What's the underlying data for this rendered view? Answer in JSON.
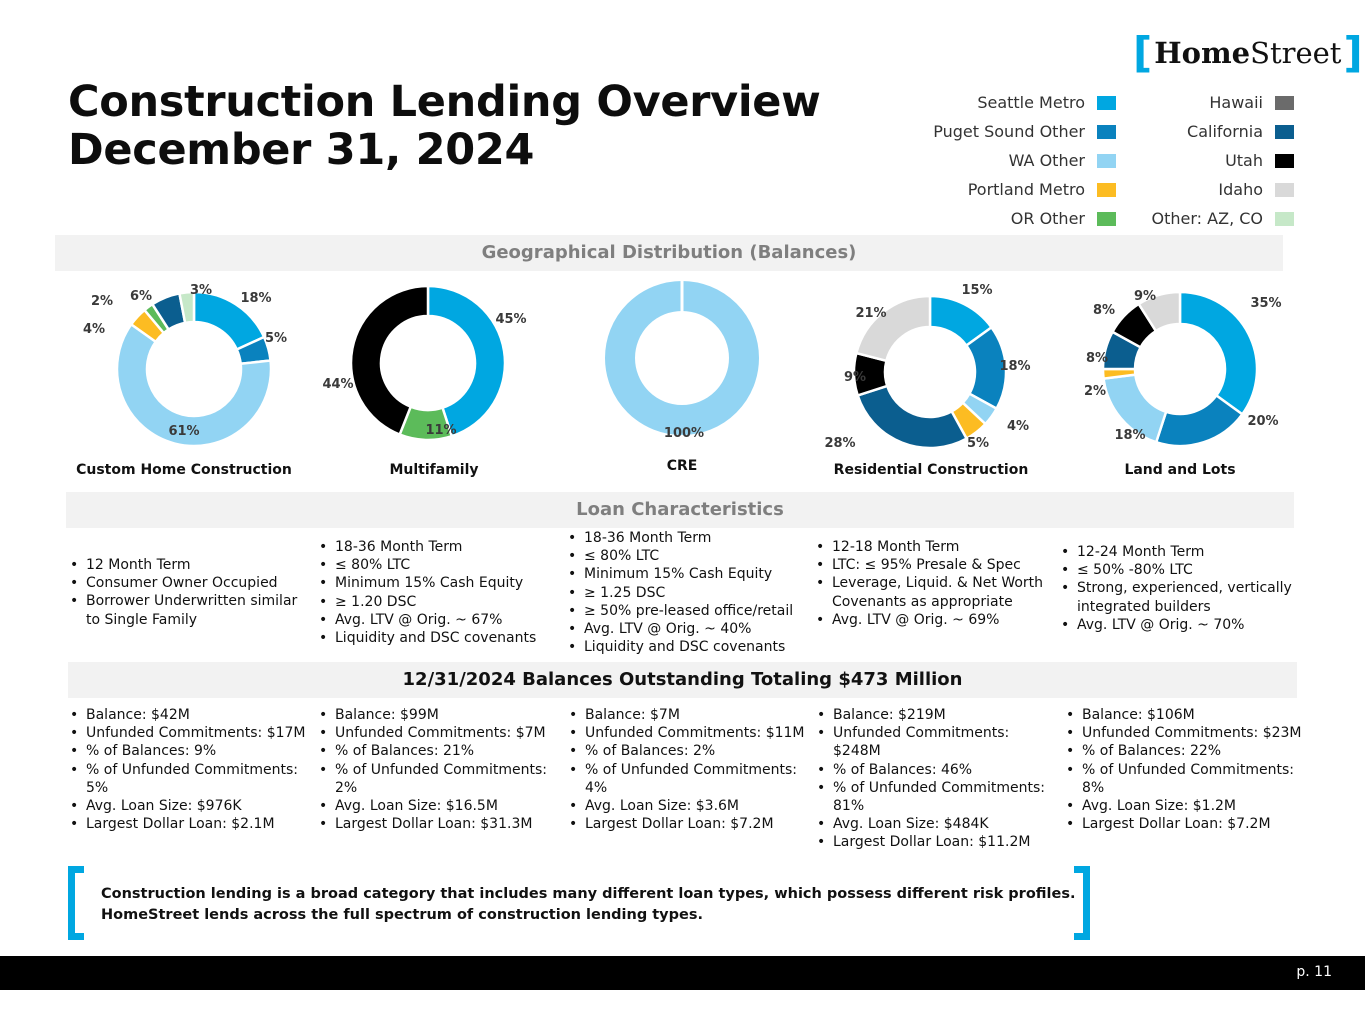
{
  "brand": {
    "bracket_open": "[",
    "home": "Home",
    "street": "Street",
    "bracket_close": "]",
    "accent_color": "#00a7e1"
  },
  "title": {
    "line1": "Construction Lending Overview",
    "line2": "December 31, 2024"
  },
  "legend": [
    {
      "label": "Seattle Metro",
      "color": "#00a7e1"
    },
    {
      "label": "Puget Sound Other",
      "color": "#0a82be"
    },
    {
      "label": "WA Other",
      "color": "#92d4f3"
    },
    {
      "label": "Portland Metro",
      "color": "#fcbc22"
    },
    {
      "label": "OR Other",
      "color": "#5cbb5a"
    },
    {
      "label": "Hawaii",
      "color": "#6b6b6b"
    },
    {
      "label": "California",
      "color": "#0b5e8f"
    },
    {
      "label": "Utah",
      "color": "#000000"
    },
    {
      "label": "Idaho",
      "color": "#d9d9d9"
    },
    {
      "label": "Other: AZ, CO",
      "color": "#c6e8c8"
    }
  ],
  "sections": {
    "geo": "Geographical Distribution (Balances)",
    "loan": "Loan Characteristics",
    "balances": "12/31/2024 Balances Outstanding Totaling $473 Million"
  },
  "chart_data": [
    {
      "type": "pie",
      "variant": "donut",
      "title": "Custom Home Construction",
      "categories": [
        "Seattle Metro",
        "Puget Sound Other",
        "WA Other",
        "Portland Metro",
        "OR Other",
        "California",
        "Other: AZ, CO"
      ],
      "values": [
        18,
        5,
        61,
        4,
        2,
        6,
        3
      ],
      "labels": [
        "18%",
        "5%",
        "61%",
        "4%",
        "2%",
        "6%",
        "3%"
      ],
      "colors": [
        "#00a7e1",
        "#0a82be",
        "#92d4f3",
        "#fcbc22",
        "#5cbb5a",
        "#0b5e8f",
        "#c6e8c8"
      ]
    },
    {
      "type": "pie",
      "variant": "donut",
      "title": "Multifamily",
      "categories": [
        "Seattle Metro",
        "OR Other",
        "Utah"
      ],
      "values": [
        45,
        11,
        44
      ],
      "labels": [
        "45%",
        "11%",
        "44%"
      ],
      "colors": [
        "#00a7e1",
        "#5cbb5a",
        "#000000"
      ]
    },
    {
      "type": "pie",
      "variant": "donut",
      "title": "CRE",
      "categories": [
        "WA Other"
      ],
      "values": [
        100
      ],
      "labels": [
        "100%"
      ],
      "colors": [
        "#92d4f3"
      ]
    },
    {
      "type": "pie",
      "variant": "donut",
      "title": "Residential Construction",
      "categories": [
        "Seattle Metro",
        "Puget Sound Other",
        "WA Other",
        "Portland Metro",
        "California",
        "Utah",
        "Idaho"
      ],
      "values": [
        15,
        18,
        4,
        5,
        28,
        9,
        21
      ],
      "labels": [
        "15%",
        "18%",
        "4%",
        "5%",
        "28%",
        "9%",
        "21%"
      ],
      "colors": [
        "#00a7e1",
        "#0a82be",
        "#92d4f3",
        "#fcbc22",
        "#0b5e8f",
        "#000000",
        "#d9d9d9"
      ]
    },
    {
      "type": "pie",
      "variant": "donut",
      "title": "Land and Lots",
      "categories": [
        "Seattle Metro",
        "Puget Sound Other",
        "WA Other",
        "Portland Metro",
        "California",
        "Utah",
        "Idaho"
      ],
      "values": [
        35,
        20,
        18,
        2,
        8,
        8,
        9
      ],
      "labels": [
        "35%",
        "20%",
        "18%",
        "2%",
        "8%",
        "8%",
        "9%"
      ],
      "colors": [
        "#00a7e1",
        "#0a82be",
        "#92d4f3",
        "#fcbc22",
        "#0b5e8f",
        "#000000",
        "#d9d9d9"
      ]
    }
  ],
  "characteristics": [
    [
      "12 Month Term",
      "Consumer Owner Occupied",
      "Borrower Underwritten similar to Single Family"
    ],
    [
      "18-36 Month Term",
      "≤ 80% LTC",
      "Minimum 15% Cash Equity",
      "≥ 1.20 DSC",
      "Avg. LTV @ Orig. ~  67%",
      "Liquidity and DSC covenants"
    ],
    [
      "18-36 Month Term",
      "≤ 80% LTC",
      "Minimum 15% Cash Equity",
      "≥ 1.25 DSC",
      "≥  50% pre-leased office/retail",
      "Avg. LTV @ Orig. ~ 40%",
      "Liquidity and DSC covenants"
    ],
    [
      "12-18 Month Term",
      "LTC:  ≤ 95%  Presale & Spec",
      "Leverage, Liquid. & Net Worth Covenants as appropriate",
      "Avg. LTV @ Orig. ~ 69%"
    ],
    [
      "12-24 Month Term",
      "≤ 50% -80% LTC",
      " Strong, experienced, vertically integrated builders",
      "Avg. LTV @ Orig. ~ 70%"
    ]
  ],
  "balances": [
    [
      "Balance: $42M",
      "Unfunded Commitments: $17M",
      "% of Balances: 9%",
      "% of Unfunded Commitments: 5%",
      "Avg. Loan Size: $976K",
      "Largest Dollar Loan:  $2.1M"
    ],
    [
      "Balance: $99M",
      "Unfunded Commitments: $7M",
      "% of Balances: 21%",
      "% of Unfunded Commitments: 2%",
      "Avg. Loan Size: $16.5M",
      "Largest Dollar Loan: $31.3M"
    ],
    [
      "Balance: $7M",
      "Unfunded Commitments: $11M",
      "% of Balances: 2%",
      "% of Unfunded Commitments: 4%",
      "Avg. Loan Size: $3.6M",
      "Largest Dollar Loan: $7.2M"
    ],
    [
      "Balance: $219M",
      "Unfunded Commitments: $248M",
      "% of Balances: 46%",
      "% of Unfunded Commitments: 81%",
      "Avg. Loan Size: $484K",
      "Largest Dollar Loan: $11.2M"
    ],
    [
      "Balance: $106M",
      "Unfunded Commitments: $23M",
      "% of Balances: 22%",
      "% of Unfunded Commitments: 8%",
      "Avg. Loan Size: $1.2M",
      "Largest Dollar Loan: $7.2M"
    ]
  ],
  "footnote": {
    "line1": "Construction lending is a broad category that includes many different loan types, which possess different risk profiles.",
    "line2": "HomeStreet lends across the full spectrum of construction lending types."
  },
  "footer": {
    "page": "p. 11"
  }
}
